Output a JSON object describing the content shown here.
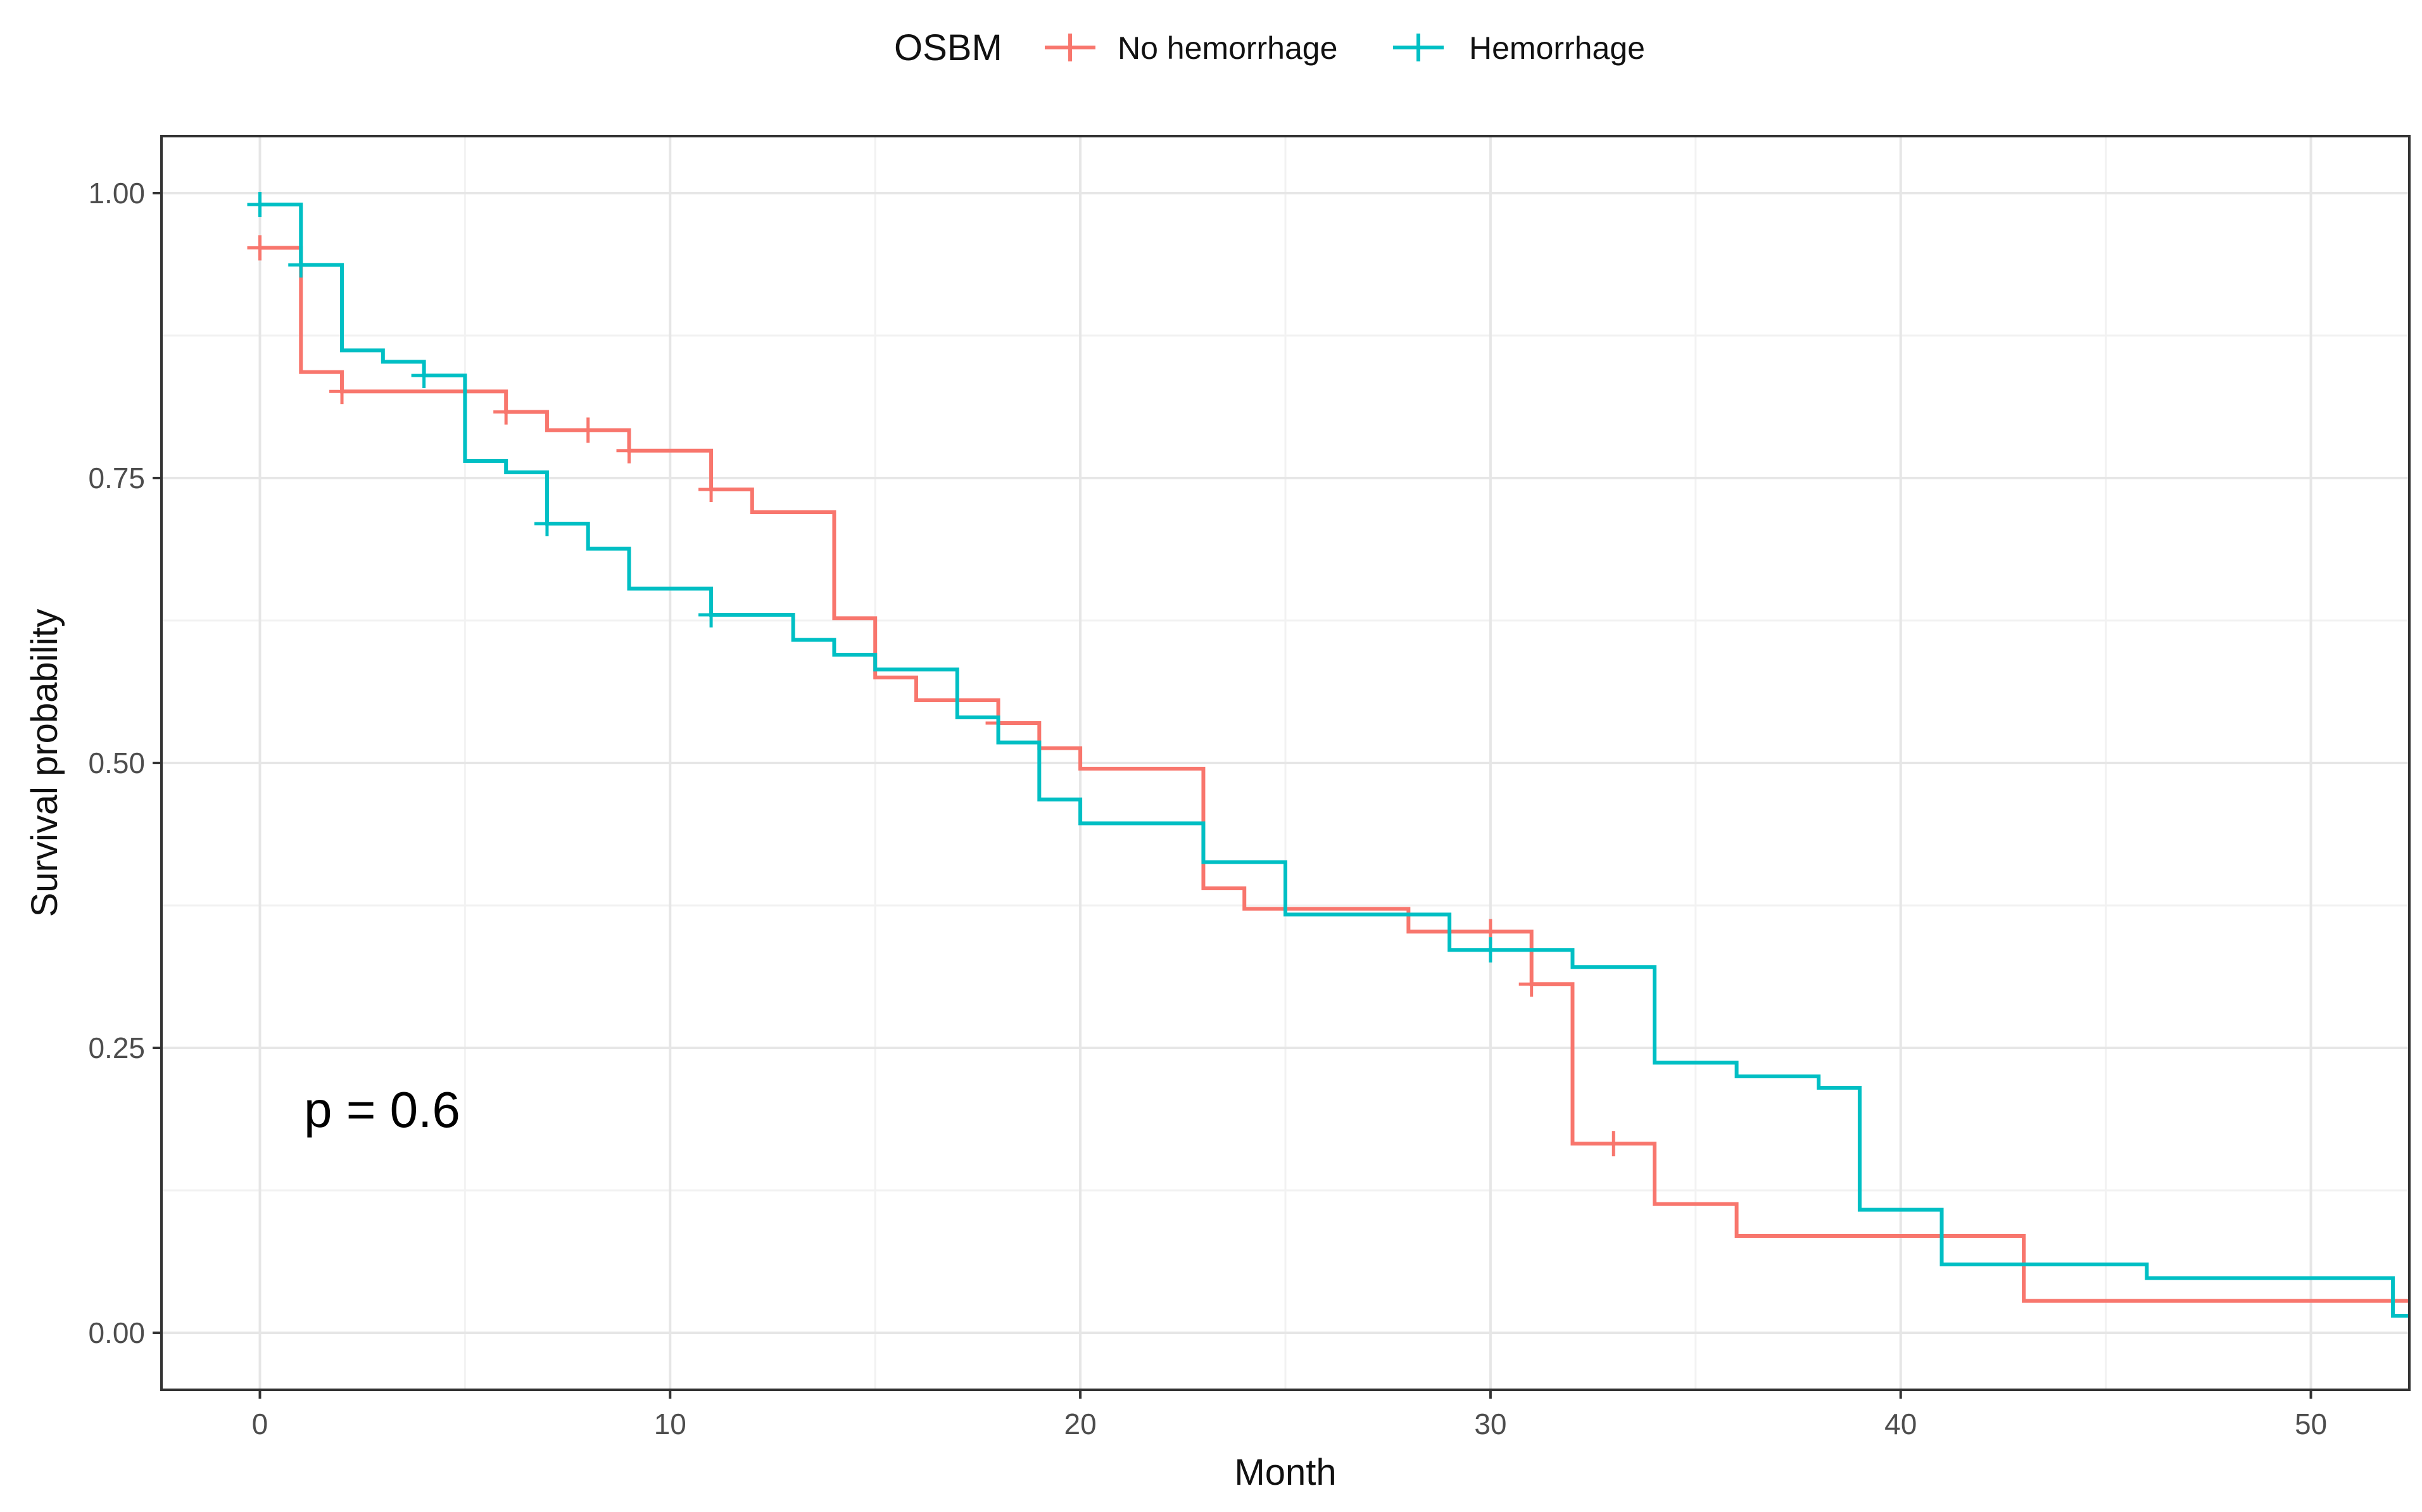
{
  "chart_data": {
    "type": "line",
    "subtype": "kaplan-meier step",
    "xlabel": "Month",
    "ylabel": "Survival probability",
    "xlim": [
      -2.4,
      52.4
    ],
    "ylim": [
      -0.05,
      1.05
    ],
    "xticks": [
      0,
      10,
      20,
      30,
      40,
      50
    ],
    "xtick_labels": [
      "0",
      "10",
      "20",
      "30",
      "40",
      "50"
    ],
    "yticks": [
      0,
      0.25,
      0.5,
      0.75,
      1.0
    ],
    "ytick_labels": [
      "0.00",
      "0.25",
      "0.50",
      "0.75",
      "1.00"
    ],
    "grid": true,
    "legend": {
      "title": "OSBM",
      "position": "top",
      "entries": [
        "No hemorrhage",
        "Hemorrhage"
      ]
    },
    "annotation": "p = 0.6",
    "series": [
      {
        "name": "No hemorrhage",
        "color": "#F8766D",
        "steps": [
          [
            0,
            0.952
          ],
          [
            1,
            0.843
          ],
          [
            2,
            0.826
          ],
          [
            6,
            0.808
          ],
          [
            7,
            0.792
          ],
          [
            9,
            0.774
          ],
          [
            11,
            0.74
          ],
          [
            12,
            0.72
          ],
          [
            14,
            0.627
          ],
          [
            15,
            0.575
          ],
          [
            16,
            0.555
          ],
          [
            18,
            0.535
          ],
          [
            19,
            0.513
          ],
          [
            20,
            0.495
          ],
          [
            23,
            0.39
          ],
          [
            24,
            0.372
          ],
          [
            28,
            0.352
          ],
          [
            31,
            0.306
          ],
          [
            32,
            0.166
          ],
          [
            34,
            0.113
          ],
          [
            36,
            0.085
          ],
          [
            43,
            0.028
          ],
          [
            52.4,
            0.028
          ]
        ],
        "censored": [
          [
            0,
            0.952
          ],
          [
            2,
            0.826
          ],
          [
            6,
            0.808
          ],
          [
            8,
            0.792
          ],
          [
            9,
            0.774
          ],
          [
            11,
            0.74
          ],
          [
            18,
            0.535
          ],
          [
            30,
            0.352
          ],
          [
            31,
            0.306
          ],
          [
            33,
            0.166
          ]
        ]
      },
      {
        "name": "Hemorrhage",
        "color": "#00BFC4",
        "steps": [
          [
            0,
            0.99
          ],
          [
            1,
            0.937
          ],
          [
            2,
            0.862
          ],
          [
            3,
            0.852
          ],
          [
            4,
            0.84
          ],
          [
            5,
            0.765
          ],
          [
            6,
            0.755
          ],
          [
            7,
            0.71
          ],
          [
            8,
            0.688
          ],
          [
            9,
            0.653
          ],
          [
            11,
            0.63
          ],
          [
            13,
            0.608
          ],
          [
            14,
            0.595
          ],
          [
            15,
            0.582
          ],
          [
            17,
            0.54
          ],
          [
            18,
            0.518
          ],
          [
            19,
            0.468
          ],
          [
            20,
            0.447
          ],
          [
            23,
            0.413
          ],
          [
            25,
            0.367
          ],
          [
            29,
            0.336
          ],
          [
            32,
            0.321
          ],
          [
            34,
            0.237
          ],
          [
            36,
            0.225
          ],
          [
            38,
            0.215
          ],
          [
            39,
            0.108
          ],
          [
            41,
            0.06
          ],
          [
            46,
            0.048
          ],
          [
            52,
            0.015
          ],
          [
            52.4,
            0.015
          ]
        ],
        "censored": [
          [
            0,
            0.99
          ],
          [
            1,
            0.937
          ],
          [
            4,
            0.84
          ],
          [
            7,
            0.71
          ],
          [
            11,
            0.63
          ],
          [
            30,
            0.336
          ]
        ]
      }
    ]
  }
}
